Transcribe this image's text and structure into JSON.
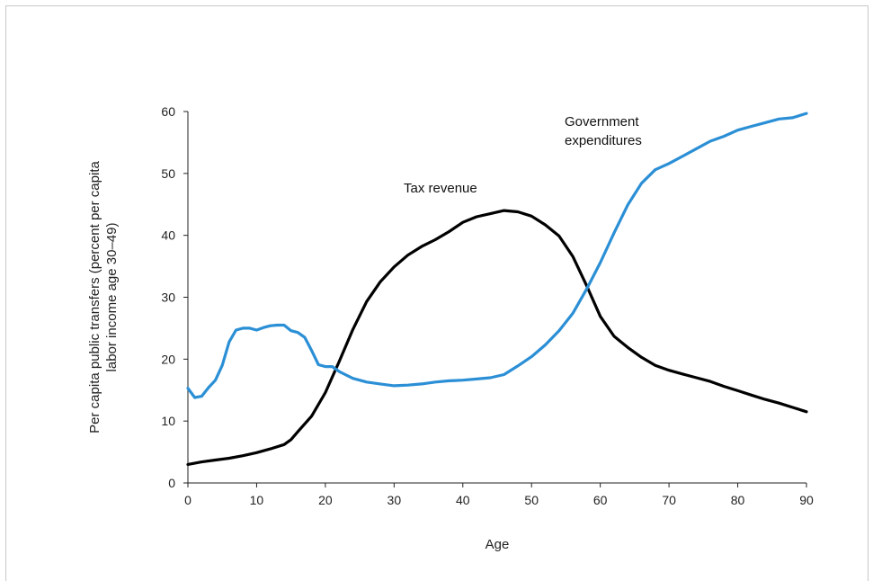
{
  "chart_data": {
    "type": "line",
    "title": "",
    "xlabel": "Age",
    "ylabel_lines": [
      "Per capita public transfers (percent per capita",
      "labor income age 30–49)"
    ],
    "xlim": [
      0,
      90
    ],
    "ylim": [
      0,
      60
    ],
    "xticks": [
      "0",
      "10",
      "20",
      "30",
      "40",
      "50",
      "60",
      "70",
      "80",
      "90"
    ],
    "yticks": [
      "0",
      "10",
      "20",
      "30",
      "40",
      "50",
      "60"
    ],
    "grid": false,
    "legend": "none",
    "series": [
      {
        "name": "Tax revenue",
        "color": "#000000",
        "annotation": [
          "Tax revenue"
        ],
        "x": [
          0,
          2,
          4,
          6,
          8,
          10,
          12,
          14,
          15,
          16,
          18,
          20,
          22,
          24,
          26,
          28,
          30,
          32,
          34,
          36,
          38,
          40,
          42,
          44,
          46,
          48,
          50,
          52,
          54,
          56,
          58,
          60,
          62,
          64,
          66,
          68,
          70,
          72,
          74,
          76,
          78,
          80,
          82,
          84,
          86,
          88,
          90
        ],
        "y": [
          3,
          3.4,
          3.7,
          4.0,
          4.4,
          4.9,
          5.5,
          6.2,
          7.0,
          8.3,
          10.8,
          14.6,
          19.6,
          24.8,
          29.3,
          32.5,
          34.9,
          36.8,
          38.2,
          39.3,
          40.6,
          42.1,
          43.0,
          43.5,
          44.0,
          43.8,
          43.1,
          41.7,
          39.9,
          36.6,
          31.9,
          26.9,
          23.7,
          21.9,
          20.3,
          19.0,
          18.2,
          17.6,
          17.0,
          16.4,
          15.6,
          14.9,
          14.2,
          13.5,
          12.9,
          12.2,
          11.5
        ]
      },
      {
        "name": "Government expenditures",
        "color": "#2b8fd6",
        "annotation": [
          "Government",
          "expenditures"
        ],
        "x": [
          0,
          1,
          2,
          3,
          4,
          5,
          6,
          7,
          8,
          9,
          10,
          11,
          12,
          13,
          14,
          15,
          16,
          17,
          18,
          19,
          20,
          21,
          22,
          24,
          26,
          28,
          30,
          32,
          34,
          36,
          38,
          40,
          42,
          44,
          46,
          48,
          50,
          52,
          54,
          56,
          58,
          60,
          62,
          64,
          66,
          68,
          70,
          72,
          74,
          76,
          78,
          80,
          82,
          84,
          86,
          88,
          90
        ],
        "y": [
          15.3,
          13.8,
          14.0,
          15.4,
          16.6,
          19.0,
          22.8,
          24.7,
          25.0,
          25.0,
          24.7,
          25.1,
          25.4,
          25.5,
          25.5,
          24.6,
          24.3,
          23.5,
          21.4,
          19.1,
          18.8,
          18.8,
          18.0,
          16.9,
          16.3,
          16.0,
          15.7,
          15.8,
          16.0,
          16.3,
          16.5,
          16.6,
          16.8,
          17.0,
          17.5,
          18.9,
          20.4,
          22.3,
          24.6,
          27.4,
          31.3,
          35.6,
          40.4,
          44.9,
          48.4,
          50.6,
          51.6,
          52.8,
          54.0,
          55.2,
          56.0,
          57.0,
          57.6,
          58.2,
          58.8,
          59.0,
          59.7
        ]
      }
    ]
  }
}
